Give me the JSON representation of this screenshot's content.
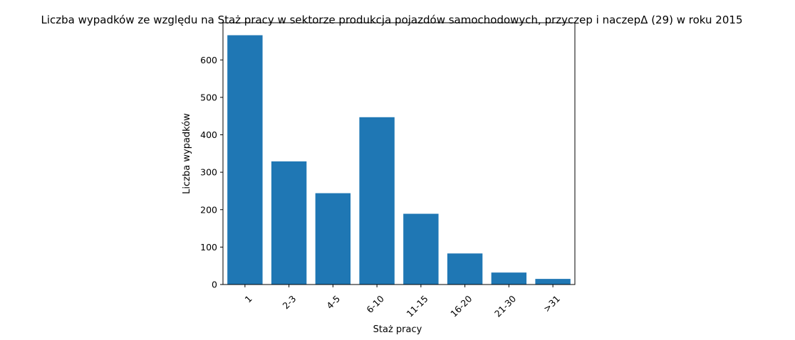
{
  "chart_data": {
    "type": "bar",
    "title": "Liczba wypadków ze względu na Staż pracy w sektorze produkcja pojazdów samochodowych, przyczep i naczepΔ (29) w roku 2015",
    "xlabel": "Staż pracy",
    "ylabel": "Liczba wypadków",
    "categories": [
      "1",
      "2-3",
      "4-5",
      "6-10",
      "11-15",
      "16-20",
      "21-30",
      ">31"
    ],
    "values": [
      666,
      329,
      244,
      447,
      189,
      83,
      32,
      15
    ],
    "ylim": [
      0,
      699.3
    ],
    "yticks": [
      0,
      100,
      200,
      300,
      400,
      500,
      600
    ],
    "bar_color": "#1f77b4",
    "grid": false,
    "legend": "none"
  }
}
